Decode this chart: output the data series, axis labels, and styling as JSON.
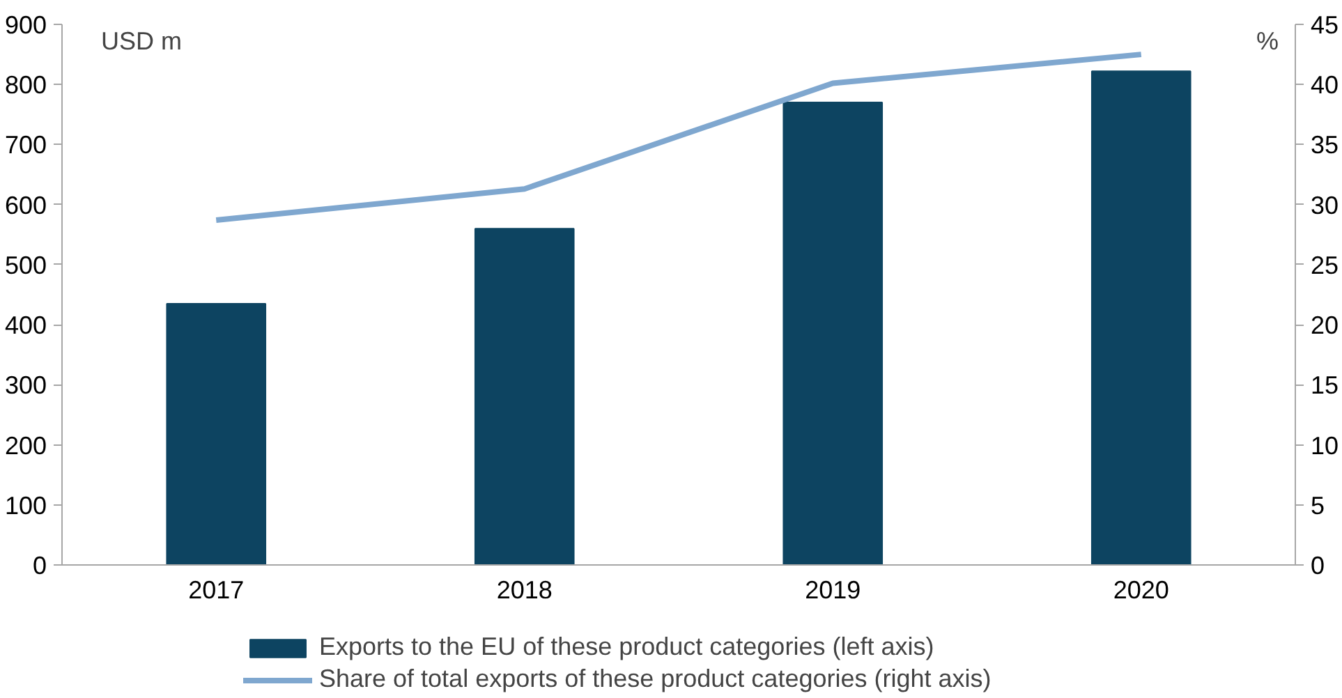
{
  "chart_data": {
    "type": "bar",
    "ylabel": "USD m",
    "y2label": "%",
    "categories": [
      "2017",
      "2018",
      "2019",
      "2020"
    ],
    "series": [
      {
        "name": "Exports to the EU of these product categories (left axis)",
        "type": "bar",
        "color": "#0d4461",
        "values": [
          435,
          560,
          770,
          822
        ]
      },
      {
        "name": "Share of total exports of these product categories (right axis)",
        "type": "line",
        "axis": "y2",
        "color": "#7fa7cf",
        "values": [
          28.7,
          31.3,
          40.1,
          42.5
        ]
      }
    ],
    "ylim": [
      0,
      900
    ],
    "yticks": [
      0,
      100,
      200,
      300,
      400,
      500,
      600,
      700,
      800,
      900
    ],
    "y2lim": [
      0,
      45
    ],
    "y2ticks": [
      0,
      5,
      10,
      15,
      20,
      25,
      30,
      35,
      40,
      45
    ],
    "grid": false,
    "legend": "bottom",
    "marker": "none",
    "line_style": "solid"
  }
}
